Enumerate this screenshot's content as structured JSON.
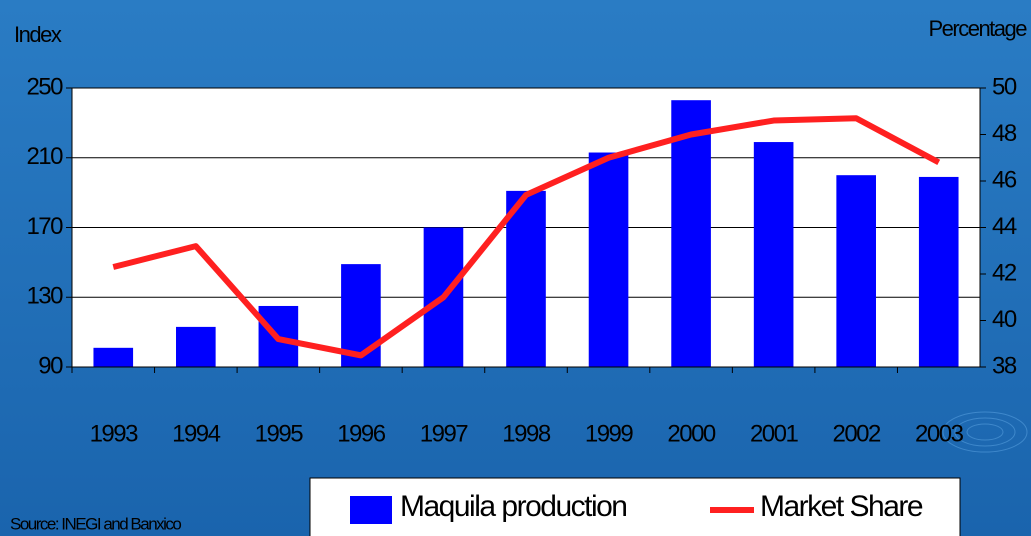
{
  "chart_data": {
    "type": "bar_line",
    "y_label": "Index",
    "y2_label": "Percentage",
    "source": "Source: INEGI and Banxico",
    "categories": [
      "1993",
      "1994",
      "1995",
      "1996",
      "1997",
      "1998",
      "1999",
      "2000",
      "2001",
      "2002",
      "2003"
    ],
    "series": [
      {
        "name": "Maquila production",
        "type": "bar",
        "color": "#0000ff",
        "values": [
          101,
          113,
          125,
          149,
          170,
          191,
          213,
          243,
          219,
          200,
          199
        ]
      },
      {
        "name": "Market Share",
        "type": "line",
        "axis": "y2",
        "color": "#ff2020",
        "values": [
          42.3,
          43.2,
          39.2,
          38.5,
          41,
          45.4,
          47,
          48,
          48.6,
          48.7,
          46.8
        ]
      }
    ],
    "ylim": [
      90,
      250
    ],
    "yticks": [
      90,
      130,
      170,
      210,
      250
    ],
    "y2lim": [
      38,
      50
    ],
    "y2ticks": [
      38,
      40,
      42,
      44,
      46,
      48,
      50
    ],
    "grid": true
  }
}
